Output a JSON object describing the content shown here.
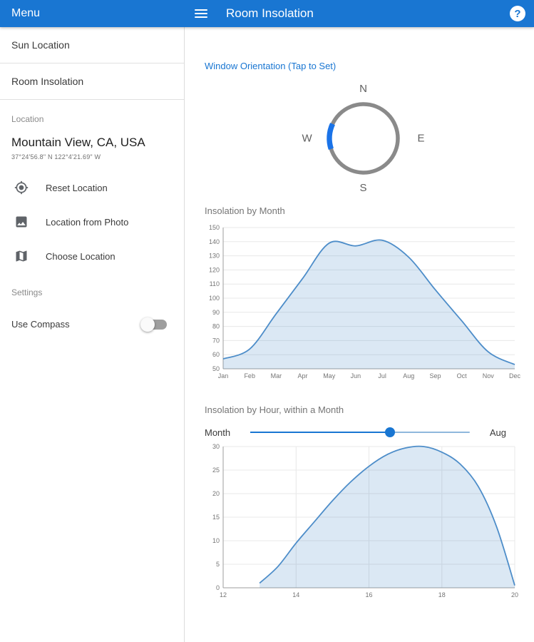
{
  "colors": {
    "app_bar": "#1976d2",
    "accent": "#1976d2",
    "chart_line": "#4d8dc9",
    "chart_fill": "rgba(77,141,201,0.2)"
  },
  "app_bar": {
    "drawer_title": "Menu",
    "title": "Room Insolation",
    "help_glyph": "?"
  },
  "sidebar": {
    "nav_items": [
      {
        "label": "Sun Location"
      },
      {
        "label": "Room Insolation"
      }
    ],
    "location": {
      "label": "Location",
      "place": "Mountain View, CA, USA",
      "coordinates": "37°24'56.8\" N 122°4'21.69\" W",
      "actions": [
        {
          "icon": "gps-fixed-icon",
          "label": "Reset Location"
        },
        {
          "icon": "photo-icon",
          "label": "Location from Photo"
        },
        {
          "icon": "map-icon",
          "label": "Choose Location"
        }
      ]
    },
    "settings": {
      "label": "Settings",
      "use_compass_label": "Use Compass",
      "use_compass_on": false
    }
  },
  "main": {
    "orientation_link": "Window Orientation (Tap to Set)",
    "compass": {
      "n": "N",
      "e": "E",
      "s": "S",
      "w": "W"
    },
    "month_chart_title": "Insolation by Month",
    "hour_chart_title": "Insolation by Hour, within a Month",
    "slider": {
      "left_label": "Month",
      "value_label": "Aug",
      "fraction": 0.636
    }
  },
  "chart_data": [
    {
      "type": "area",
      "title": "Insolation by Month",
      "categories": [
        "Jan",
        "Feb",
        "Mar",
        "Apr",
        "May",
        "Jun",
        "Jul",
        "Aug",
        "Sep",
        "Oct",
        "Nov",
        "Dec"
      ],
      "values": [
        57,
        64,
        89,
        114,
        139,
        137,
        141,
        129,
        106,
        84,
        62,
        53
      ],
      "ylim": [
        50,
        150
      ],
      "ytick_step": 10,
      "grid": "horizontal",
      "legend": "none"
    },
    {
      "type": "area",
      "title": "Insolation by Hour, within a Month (Aug)",
      "x": [
        13,
        13.5,
        14,
        14.5,
        15,
        15.5,
        16,
        16.5,
        17,
        17.5,
        18,
        18.5,
        19,
        19.5,
        20
      ],
      "values": [
        1,
        4.5,
        9.5,
        14,
        18.5,
        22.5,
        25.8,
        28.3,
        29.7,
        30,
        28.8,
        26.3,
        21.5,
        13,
        0.5
      ],
      "xlim": [
        12,
        20
      ],
      "xticks": [
        12,
        14,
        16,
        18,
        20
      ],
      "ylim": [
        0,
        30
      ],
      "ytick_step": 5,
      "grid": "both",
      "legend": "none"
    }
  ]
}
